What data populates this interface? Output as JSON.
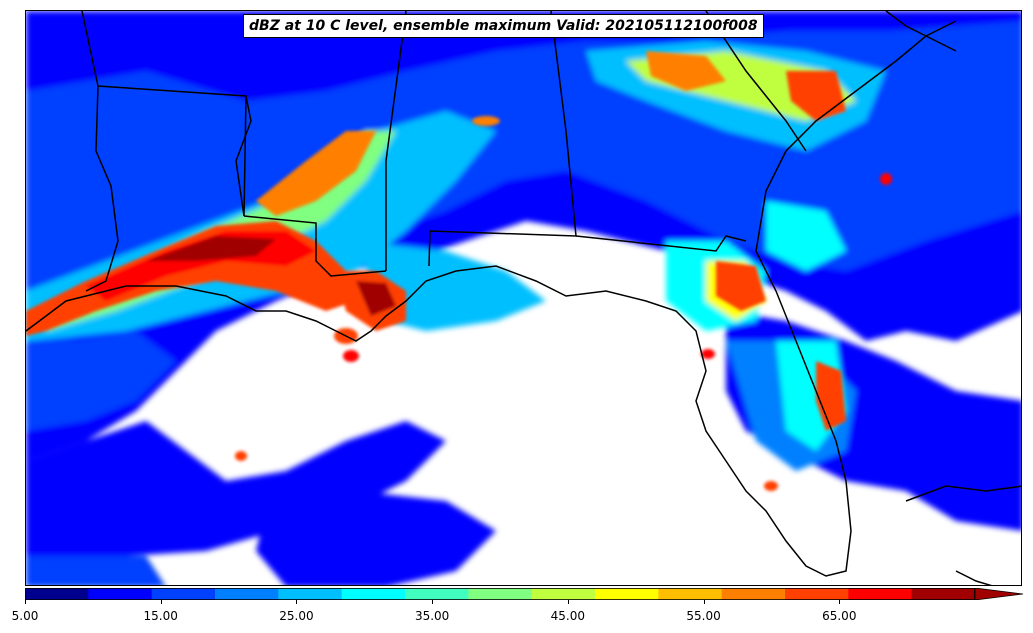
{
  "title": "dBZ at 10 C level, ensemble maximum Valid: 202105112100f008",
  "colorbar": {
    "min": 5,
    "max": 75,
    "step": 5,
    "extend": "max",
    "colors": [
      "#00008f",
      "#0000ff",
      "#0040ff",
      "#0080ff",
      "#00bfff",
      "#00ffff",
      "#40ffbf",
      "#80ff80",
      "#bfff40",
      "#ffff00",
      "#ffbf00",
      "#ff8000",
      "#ff4000",
      "#ff0000",
      "#a00000"
    ],
    "tick_labels": [
      "5.00",
      "15.00",
      "25.00",
      "35.00",
      "45.00",
      "55.00",
      "65.00"
    ]
  }
}
